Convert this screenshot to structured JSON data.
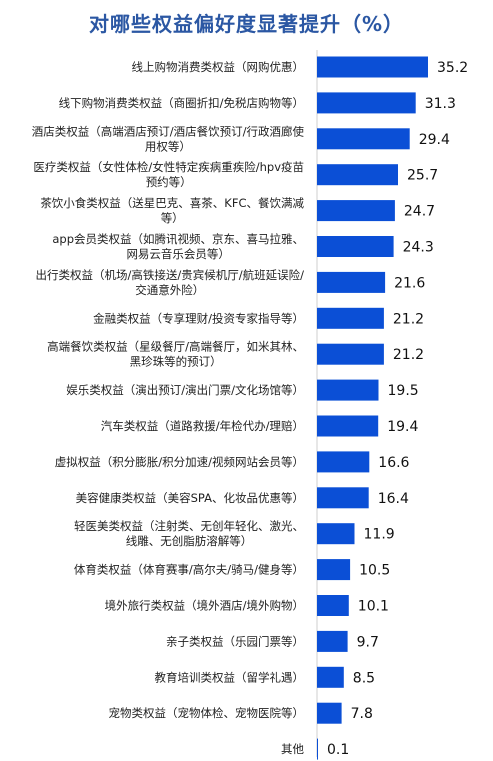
{
  "chart_data": {
    "type": "bar",
    "orientation": "horizontal",
    "title": "对哪些权益偏好度显著提升（%）",
    "bar_color": "#0b4fd6",
    "title_color": "#2b57a3",
    "categories": [
      [
        "线上购物消费类权益（网购优惠）"
      ],
      [
        "线下购物消费类权益（商圈折扣/免税店购物等）"
      ],
      [
        "酒店类权益（高端酒店预订/酒店餐饮预订/行政酒廊使",
        "用权等）"
      ],
      [
        "医疗类权益（女性体检/女性特定疾病重疾险/hpv疫苗",
        "预约等）"
      ],
      [
        "茶饮小食类权益（送星巴克、喜茶、KFC、餐饮满减",
        "等）"
      ],
      [
        "app会员类权益（如腾讯视频、京东、喜马拉雅、",
        "网易云音乐会员等）"
      ],
      [
        "出行类权益（机场/高铁接送/贵宾候机厅/航班延误险/",
        "交通意外险）"
      ],
      [
        "金融类权益（专享理财/投资专家指导等）"
      ],
      [
        "高端餐饮类权益（星级餐厅/高端餐厅，如米其林、",
        "黑珍珠等的预订）"
      ],
      [
        "娱乐类权益（演出预订/演出门票/文化场馆等）"
      ],
      [
        "汽车类权益（道路救援/年检代办/理赔）"
      ],
      [
        "虚拟权益（积分膨胀/积分加速/视频网站会员等）"
      ],
      [
        "美容健康类权益（美容SPA、化妆品优惠等）"
      ],
      [
        "轻医美类权益（注射类、无创年轻化、激光、",
        "线雕、无创脂肪溶解等）"
      ],
      [
        "体育类权益（体育赛事/高尔夫/骑马/健身等）"
      ],
      [
        "境外旅行类权益（境外酒店/境外购物）"
      ],
      [
        "亲子类权益（乐园门票等）"
      ],
      [
        "教育培训类权益（留学礼遇）"
      ],
      [
        "宠物类权益（宠物体检、宠物医院等）"
      ],
      [
        "其他"
      ]
    ],
    "values": [
      35.2,
      31.3,
      29.4,
      25.7,
      24.7,
      24.3,
      21.6,
      21.2,
      21.2,
      19.5,
      19.4,
      16.6,
      16.4,
      11.9,
      10.5,
      10.1,
      9.7,
      8.5,
      7.8,
      0.1
    ],
    "value_labels": [
      "35.2",
      "31.3",
      "29.4",
      "25.7",
      "24.7",
      "24.3",
      "21.6",
      "21.2",
      "21.2",
      "19.5",
      "19.4",
      "16.6",
      "16.4",
      "11.9",
      "10.5",
      "10.1",
      "9.7",
      "8.5",
      "7.8",
      "0.1"
    ],
    "xlim": [
      0,
      35.2
    ],
    "grid": false,
    "legend": "none"
  }
}
